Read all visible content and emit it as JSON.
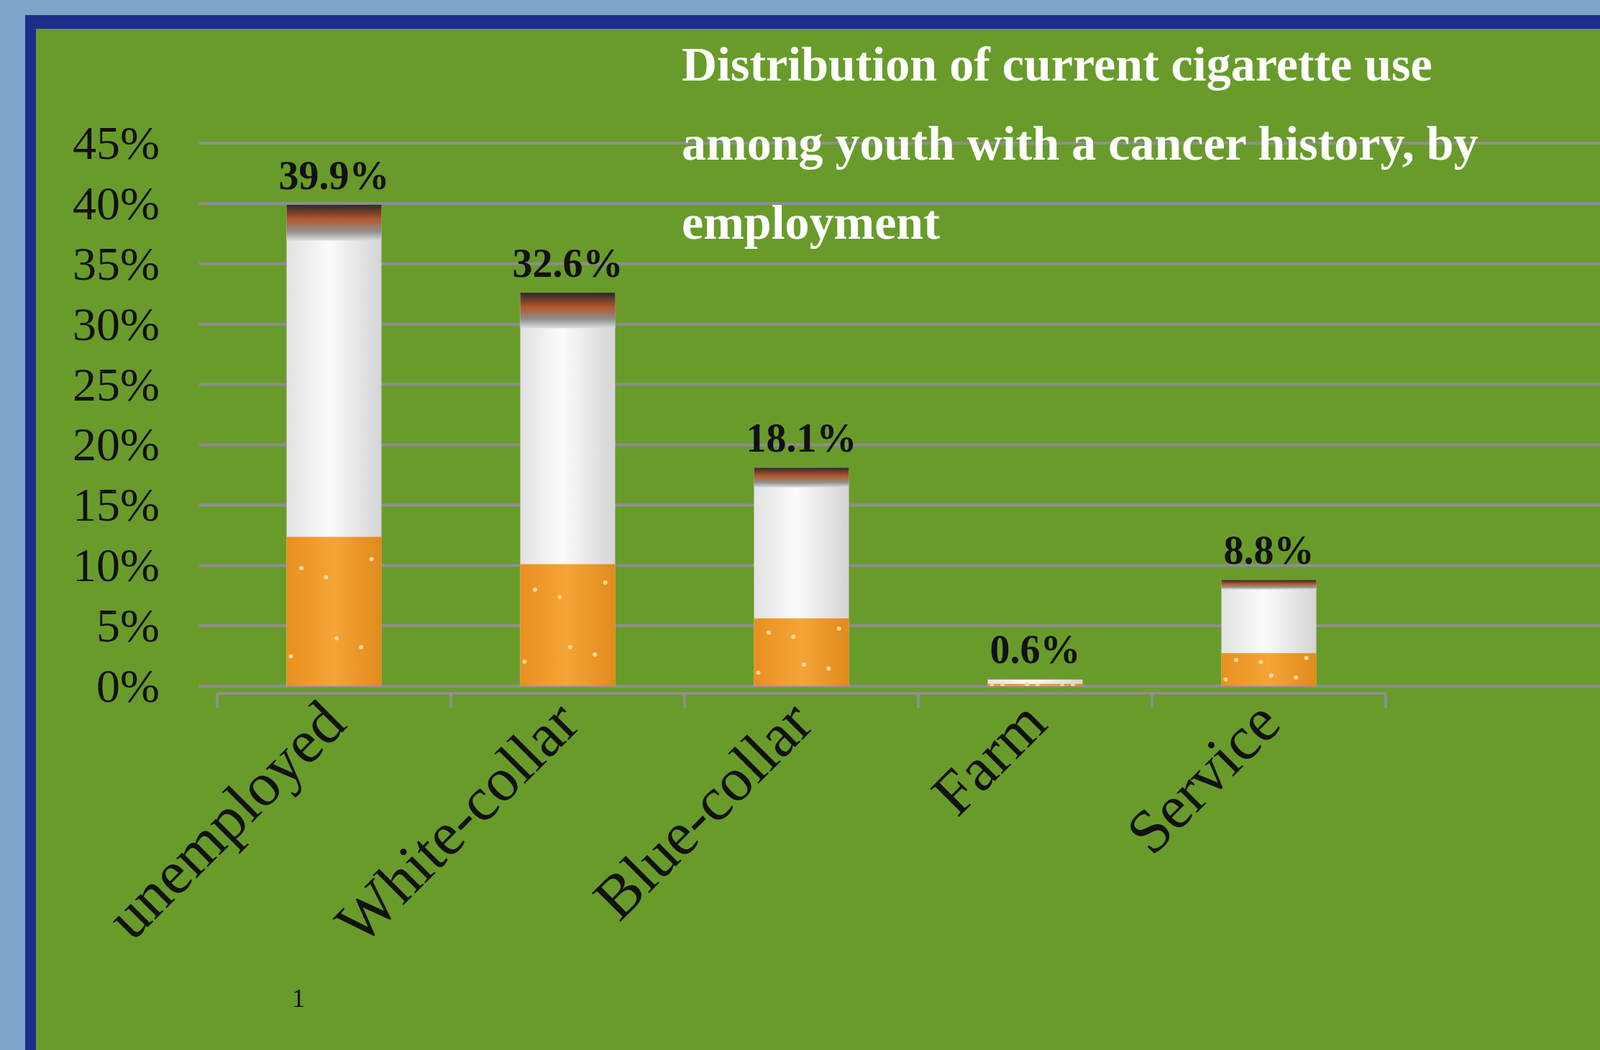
{
  "chart_data": {
    "type": "bar",
    "title": "Distribution of current cigarette use among youth with a cancer history, by employment",
    "categories": [
      "unemployed",
      "White-collar",
      "Blue-collar",
      "Farm",
      "Service"
    ],
    "values": [
      39.9,
      32.6,
      18.1,
      0.6,
      8.8
    ],
    "value_labels": [
      "39.9%",
      "32.6%",
      "18.1%",
      "0.6%",
      "8.8%"
    ],
    "ylim": [
      0,
      45
    ],
    "yticks": [
      {
        "value": 0,
        "label": "0%"
      },
      {
        "value": 5,
        "label": "5%"
      },
      {
        "value": 10,
        "label": "10%"
      },
      {
        "value": 15,
        "label": "15%"
      },
      {
        "value": 20,
        "label": "20%"
      },
      {
        "value": 25,
        "label": "25%"
      },
      {
        "value": 30,
        "label": "30%"
      },
      {
        "value": 35,
        "label": "35%"
      },
      {
        "value": 40,
        "label": "40%"
      },
      {
        "value": 45,
        "label": "45%"
      }
    ],
    "grid": true,
    "data_labels": true,
    "annotations": [
      "1"
    ]
  }
}
